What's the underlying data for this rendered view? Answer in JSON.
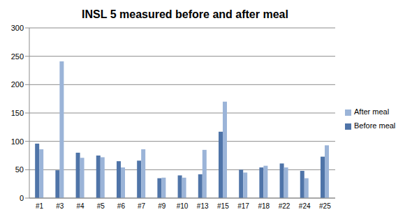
{
  "chart_data": {
    "type": "bar",
    "title": "INSL 5 measured before and after meal",
    "categories": [
      "#1",
      "#3",
      "#4",
      "#5",
      "#6",
      "#7",
      "#9",
      "#10",
      "#13",
      "#15",
      "#17",
      "#18",
      "#22",
      "#24",
      "#25"
    ],
    "series": [
      {
        "name": "Before meal",
        "color": "#4f74a8",
        "values": [
          96,
          49,
          80,
          75,
          65,
          66,
          35,
          40,
          42,
          117,
          50,
          54,
          61,
          48,
          73
        ]
      },
      {
        "name": "After meal",
        "color": "#9bb4d8",
        "values": [
          86,
          241,
          71,
          72,
          54,
          86,
          36,
          36,
          85,
          170,
          45,
          57,
          54,
          35,
          93
        ]
      }
    ],
    "ylim": [
      0,
      300
    ],
    "yticks": [
      0,
      50,
      100,
      150,
      200,
      250,
      300
    ],
    "grid": true,
    "legend": "right"
  }
}
